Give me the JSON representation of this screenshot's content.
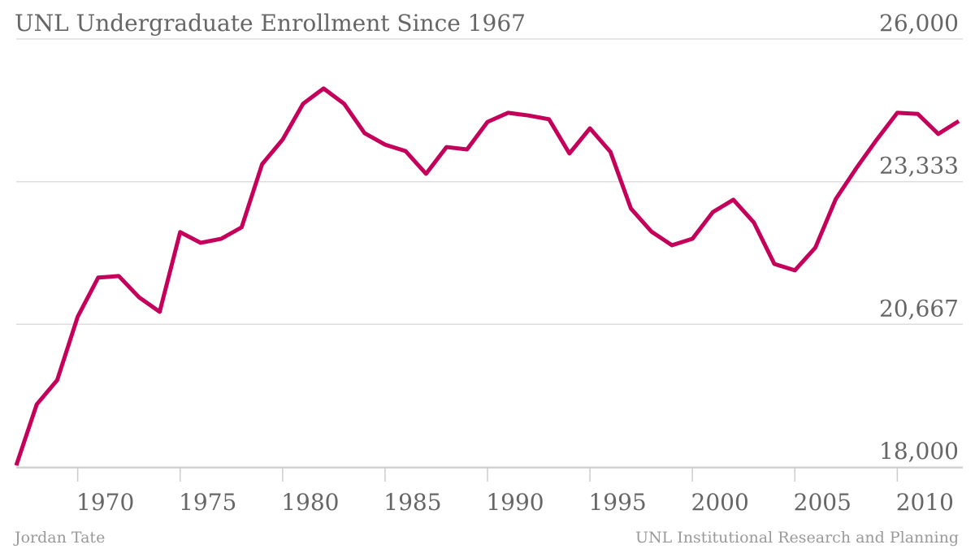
{
  "chart_data": {
    "type": "line",
    "title": "UNL Undergraduate Enrollment Since 1967",
    "credit": "Jordan Tate",
    "source": "UNL Institutional Research and Planning",
    "x": [
      1967,
      1968,
      1969,
      1970,
      1971,
      1972,
      1973,
      1974,
      1975,
      1976,
      1977,
      1978,
      1979,
      1980,
      1981,
      1982,
      1983,
      1984,
      1985,
      1986,
      1987,
      1988,
      1989,
      1990,
      1991,
      1992,
      1993,
      1994,
      1995,
      1996,
      1997,
      1998,
      1999,
      2000,
      2001,
      2002,
      2003,
      2004,
      2005,
      2006,
      2007,
      2008,
      2009,
      2010,
      2011,
      2012,
      2013
    ],
    "series": [
      {
        "name": "Undergraduate enrollment",
        "color": "#c4005a",
        "values": [
          18030,
          19170,
          19625,
          20810,
          21540,
          21570,
          21170,
          20900,
          22390,
          22190,
          22265,
          22480,
          23660,
          24120,
          24790,
          25075,
          24790,
          24240,
          24025,
          23905,
          23480,
          23980,
          23935,
          24450,
          24620,
          24570,
          24500,
          23860,
          24330,
          23890,
          22830,
          22400,
          22145,
          22265,
          22765,
          22995,
          22570,
          21795,
          21675,
          22100,
          23010,
          23585,
          24120,
          24620,
          24600,
          24225,
          24465
        ]
      }
    ],
    "xlim": [
      1967,
      2013
    ],
    "xticks": [
      1970,
      1975,
      1980,
      1985,
      1990,
      1995,
      2000,
      2005,
      2010
    ],
    "ylim": [
      18000,
      26000
    ],
    "yticks": [
      {
        "value": 18000,
        "label": "18,000"
      },
      {
        "value": 20667,
        "label": "20,667"
      },
      {
        "value": 23333,
        "label": "23,333"
      },
      {
        "value": 26000,
        "label": "26,000"
      }
    ],
    "grid": true
  }
}
